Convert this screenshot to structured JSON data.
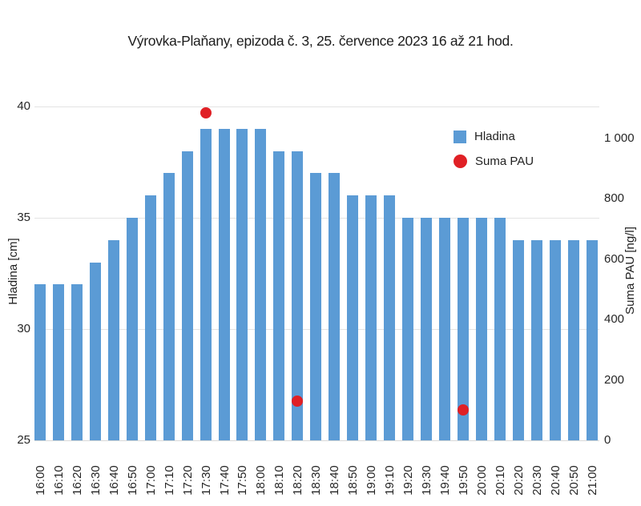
{
  "chart_data": {
    "type": "bar",
    "title": "Výrovka-Plaňany, epizoda č. 3, 25. července 2023 16 až 21 hod.",
    "ylabel_left": "Hladina [cm]",
    "ylabel_right": "Suma PAU [ng/l]",
    "categories": [
      "16:00",
      "16:10",
      "16:20",
      "16:30",
      "16:40",
      "16:50",
      "17:00",
      "17:10",
      "17:20",
      "17:30",
      "17:40",
      "17:50",
      "18:00",
      "18:10",
      "18:20",
      "18:30",
      "18:40",
      "18:50",
      "19:00",
      "19:10",
      "19:20",
      "19:30",
      "19:40",
      "19:50",
      "20:00",
      "20:10",
      "20:20",
      "20:30",
      "20:40",
      "20:50",
      "21:00"
    ],
    "series": [
      {
        "name": "Hladina",
        "type": "bar",
        "axis": "left",
        "color": "#5B9BD5",
        "values": [
          32,
          32,
          32,
          33,
          34,
          35,
          36,
          37,
          38,
          39,
          39,
          39,
          39,
          38,
          38,
          37,
          37,
          36,
          36,
          36,
          35,
          35,
          35,
          35,
          35,
          35,
          34,
          34,
          34,
          34,
          34
        ]
      },
      {
        "name": "Suma PAU",
        "type": "scatter",
        "axis": "right",
        "color": "#E02025",
        "points": [
          {
            "category": "17:30",
            "value": 1085
          },
          {
            "category": "18:20",
            "value": 130
          },
          {
            "category": "19:50",
            "value": 100
          }
        ]
      }
    ],
    "left_axis": {
      "min": 25,
      "max": 40,
      "ticks": [
        25,
        30,
        35,
        40
      ],
      "tick_labels": [
        "25",
        "30",
        "35",
        "40"
      ]
    },
    "right_axis": {
      "min": 0,
      "max": 1106,
      "ticks": [
        0,
        200,
        400,
        600,
        800,
        1000
      ],
      "tick_labels": [
        "0",
        "200",
        "400",
        "600",
        "800",
        "1 000"
      ]
    },
    "legend": [
      {
        "label": "Hladina",
        "marker": "square",
        "color": "#5B9BD5"
      },
      {
        "label": "Suma PAU",
        "marker": "circle",
        "color": "#E02025"
      }
    ],
    "grid": "horizontal",
    "legend_position": "inside-top-right"
  }
}
